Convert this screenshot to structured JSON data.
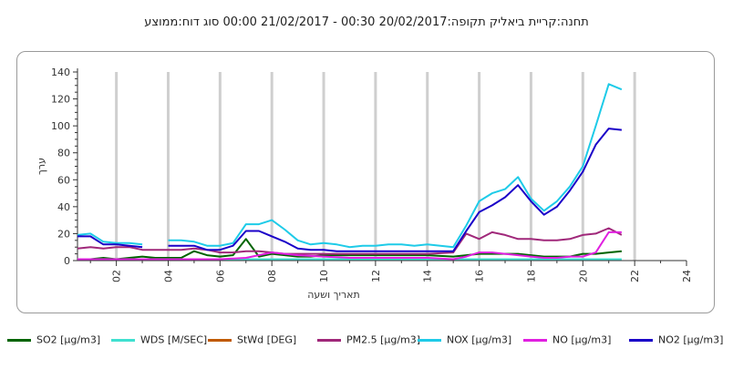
{
  "title": "תחנה:קריית ביאליק  תקופה:20/02/2017 00:30 - 21/02/2017 00:00 סוג דוח:ממוצע",
  "chart_data": {
    "type": "line",
    "ylabel": "ערך",
    "xlabel": "תאריך ושעה",
    "xlim": [
      0.5,
      24
    ],
    "ylim": [
      0,
      140
    ],
    "grid": "vertical",
    "legend_position": "bottom",
    "x_ticks": [
      "02",
      "04",
      "06",
      "08",
      "10",
      "12",
      "14",
      "16",
      "18",
      "20",
      "22",
      "24"
    ],
    "y_ticks": [
      "0",
      "20",
      "40",
      "60",
      "80",
      "100",
      "120",
      "140"
    ],
    "series": [
      {
        "name": "SO2 [µg/m3]",
        "color": "#006400",
        "points": [
          [
            0.5,
            1
          ],
          [
            1,
            1
          ],
          [
            1.5,
            2
          ],
          [
            2,
            1
          ],
          [
            2.5,
            2
          ],
          [
            3,
            3
          ],
          [
            3.5,
            2
          ],
          [
            4,
            2
          ],
          [
            4.5,
            2
          ],
          [
            5,
            7
          ],
          [
            5.5,
            4
          ],
          [
            6,
            3
          ],
          [
            6.5,
            4
          ],
          [
            7,
            16
          ],
          [
            7.5,
            3
          ],
          [
            8,
            5
          ],
          [
            8.5,
            4
          ],
          [
            9,
            3
          ],
          [
            9.5,
            3
          ],
          [
            10,
            4
          ],
          [
            11,
            4
          ],
          [
            12,
            4
          ],
          [
            13,
            4
          ],
          [
            14,
            4
          ],
          [
            15,
            3
          ],
          [
            15.5,
            4
          ],
          [
            16,
            5
          ],
          [
            16.5,
            5
          ],
          [
            17,
            5
          ],
          [
            17.5,
            5
          ],
          [
            18,
            4
          ],
          [
            18.5,
            3
          ],
          [
            19,
            3
          ],
          [
            19.5,
            3
          ],
          [
            20,
            5
          ],
          [
            20.5,
            5
          ],
          [
            21,
            6
          ],
          [
            21.5,
            7
          ]
        ]
      },
      {
        "name": "WDS [M/SEC]",
        "color": "#40E0D0",
        "points": [
          [
            0.5,
            1
          ],
          [
            3,
            1
          ],
          [
            6,
            1
          ],
          [
            9,
            1
          ],
          [
            12,
            1
          ],
          [
            15,
            1
          ],
          [
            18,
            1
          ],
          [
            21.5,
            1
          ]
        ]
      },
      {
        "name": "StWd [DEG]",
        "color": "#C05A00",
        "points": []
      },
      {
        "name": "PM2.5 [µg/m3]",
        "color": "#A0287A",
        "points": [
          [
            0.5,
            9
          ],
          [
            1,
            10
          ],
          [
            1.5,
            9
          ],
          [
            2,
            10
          ],
          [
            2.5,
            10
          ],
          [
            3,
            8
          ],
          [
            3.5,
            8
          ],
          [
            4,
            8
          ],
          [
            4.5,
            8
          ],
          [
            5,
            9
          ],
          [
            5.5,
            8
          ],
          [
            6,
            6
          ],
          [
            6.5,
            6
          ],
          [
            7,
            7
          ],
          [
            7.5,
            7
          ],
          [
            8,
            6
          ],
          [
            8.5,
            5
          ],
          [
            9,
            5
          ],
          [
            9.5,
            5
          ],
          [
            10,
            5
          ],
          [
            11,
            5
          ],
          [
            12,
            5
          ],
          [
            13,
            5
          ],
          [
            14,
            5
          ],
          [
            15,
            6
          ],
          [
            15.5,
            20
          ],
          [
            16,
            16
          ],
          [
            16.5,
            21
          ],
          [
            17,
            19
          ],
          [
            17.5,
            16
          ],
          [
            18,
            16
          ],
          [
            18.5,
            15
          ],
          [
            19,
            15
          ],
          [
            19.5,
            16
          ],
          [
            20,
            19
          ],
          [
            20.5,
            20
          ],
          [
            21,
            24
          ],
          [
            21.5,
            19
          ]
        ]
      },
      {
        "name": "NOX [µg/m3]",
        "color": "#1ECBE8",
        "points": [
          [
            0.5,
            19
          ],
          [
            1,
            20
          ],
          [
            1.5,
            14
          ],
          [
            2,
            13
          ],
          [
            2.5,
            13
          ],
          [
            3,
            12
          ],
          [
            3.5,
            null
          ],
          [
            4,
            15
          ],
          [
            4.5,
            15
          ],
          [
            5,
            14
          ],
          [
            5.5,
            11
          ],
          [
            6,
            11
          ],
          [
            6.5,
            13
          ],
          [
            7,
            27
          ],
          [
            7.5,
            27
          ],
          [
            8,
            30
          ],
          [
            8.5,
            23
          ],
          [
            9,
            15
          ],
          [
            9.5,
            12
          ],
          [
            10,
            13
          ],
          [
            10.5,
            12
          ],
          [
            11,
            10
          ],
          [
            11.5,
            11
          ],
          [
            12,
            11
          ],
          [
            12.5,
            12
          ],
          [
            13,
            12
          ],
          [
            13.5,
            11
          ],
          [
            14,
            12
          ],
          [
            14.5,
            11
          ],
          [
            15,
            10
          ],
          [
            15.5,
            26
          ],
          [
            16,
            44
          ],
          [
            16.5,
            50
          ],
          [
            17,
            53
          ],
          [
            17.5,
            62
          ],
          [
            18,
            46
          ],
          [
            18.5,
            37
          ],
          [
            19,
            44
          ],
          [
            19.5,
            55
          ],
          [
            20,
            70
          ],
          [
            20.5,
            100
          ],
          [
            21,
            131
          ],
          [
            21.5,
            127
          ]
        ]
      },
      {
        "name": "NO [µg/m3]",
        "color": "#E020E0",
        "points": [
          [
            0.5,
            1
          ],
          [
            1,
            1
          ],
          [
            2,
            1
          ],
          [
            3,
            1
          ],
          [
            4,
            1
          ],
          [
            5,
            1
          ],
          [
            6,
            1
          ],
          [
            7,
            2
          ],
          [
            8,
            6
          ],
          [
            8.5,
            5
          ],
          [
            9,
            4
          ],
          [
            10,
            3
          ],
          [
            11,
            2
          ],
          [
            12,
            2
          ],
          [
            13,
            2
          ],
          [
            14,
            2
          ],
          [
            15,
            1
          ],
          [
            15.5,
            3
          ],
          [
            16,
            6
          ],
          [
            16.5,
            6
          ],
          [
            17,
            5
          ],
          [
            17.5,
            4
          ],
          [
            18,
            3
          ],
          [
            18.5,
            2
          ],
          [
            19,
            2
          ],
          [
            19.5,
            3
          ],
          [
            20,
            3
          ],
          [
            20.5,
            6
          ],
          [
            21,
            21
          ],
          [
            21.5,
            21
          ]
        ]
      },
      {
        "name": "NO2 [µg/m3]",
        "color": "#1A00C8",
        "points": [
          [
            0.5,
            18
          ],
          [
            1,
            18
          ],
          [
            1.5,
            12
          ],
          [
            2,
            12
          ],
          [
            2.5,
            11
          ],
          [
            3,
            10
          ],
          [
            3.5,
            null
          ],
          [
            4,
            11
          ],
          [
            4.5,
            11
          ],
          [
            5,
            11
          ],
          [
            5.5,
            8
          ],
          [
            6,
            8
          ],
          [
            6.5,
            11
          ],
          [
            7,
            22
          ],
          [
            7.5,
            22
          ],
          [
            8,
            18
          ],
          [
            8.5,
            14
          ],
          [
            9,
            9
          ],
          [
            9.5,
            8
          ],
          [
            10,
            8
          ],
          [
            10.5,
            7
          ],
          [
            11,
            7
          ],
          [
            11.5,
            7
          ],
          [
            12,
            7
          ],
          [
            12.5,
            7
          ],
          [
            13,
            7
          ],
          [
            13.5,
            7
          ],
          [
            14,
            7
          ],
          [
            14.5,
            7
          ],
          [
            15,
            7
          ],
          [
            15.5,
            22
          ],
          [
            16,
            36
          ],
          [
            16.5,
            41
          ],
          [
            17,
            47
          ],
          [
            17.5,
            56
          ],
          [
            18,
            44
          ],
          [
            18.5,
            34
          ],
          [
            19,
            40
          ],
          [
            19.5,
            52
          ],
          [
            20,
            66
          ],
          [
            20.5,
            86
          ],
          [
            21,
            98
          ],
          [
            21.5,
            97
          ]
        ]
      }
    ]
  }
}
